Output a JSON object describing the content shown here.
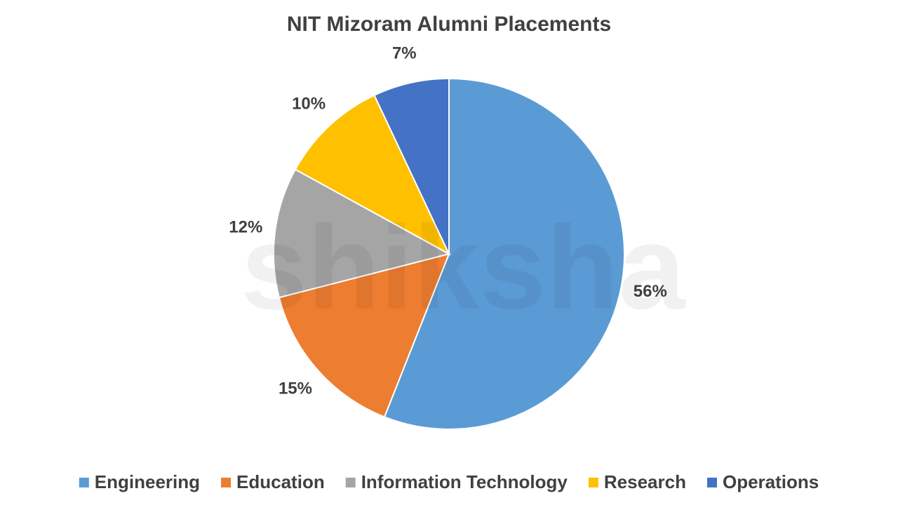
{
  "chart_data": {
    "type": "pie",
    "title": "NIT Mizoram Alumni Placements",
    "watermark": "shiksha",
    "categories": [
      "Engineering",
      "Education",
      "Information Technology",
      "Research",
      "Operations"
    ],
    "values": [
      56,
      15,
      12,
      10,
      7
    ],
    "value_labels": [
      "56%",
      "15%",
      "12%",
      "10%",
      "7%"
    ],
    "colors": [
      "#5b9bd5",
      "#ed7d31",
      "#a5a5a5",
      "#ffc000",
      "#4472c4"
    ],
    "legend": "bottom"
  }
}
